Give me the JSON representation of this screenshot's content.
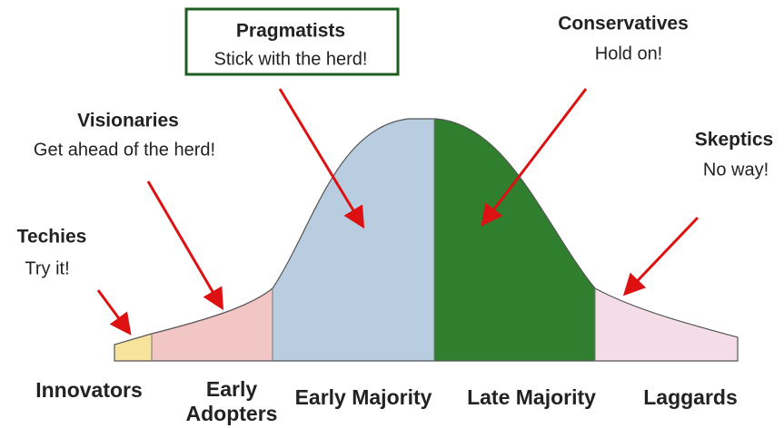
{
  "callouts": [
    {
      "title": "Techies",
      "subtitle": "Try it!"
    },
    {
      "title": "Visionaries",
      "subtitle": "Get ahead of the herd!"
    },
    {
      "title": "Pragmatists",
      "subtitle": "Stick with the herd!"
    },
    {
      "title": "Conservatives",
      "subtitle": "Hold on!"
    },
    {
      "title": "Skeptics",
      "subtitle": "No way!"
    }
  ],
  "segments": [
    {
      "label": [
        "Innovators"
      ]
    },
    {
      "label": [
        "Early",
        "Adopters"
      ]
    },
    {
      "label": [
        "Early Majority"
      ]
    },
    {
      "label": [
        "Late Majority"
      ]
    },
    {
      "label": [
        "Laggards"
      ]
    }
  ]
}
